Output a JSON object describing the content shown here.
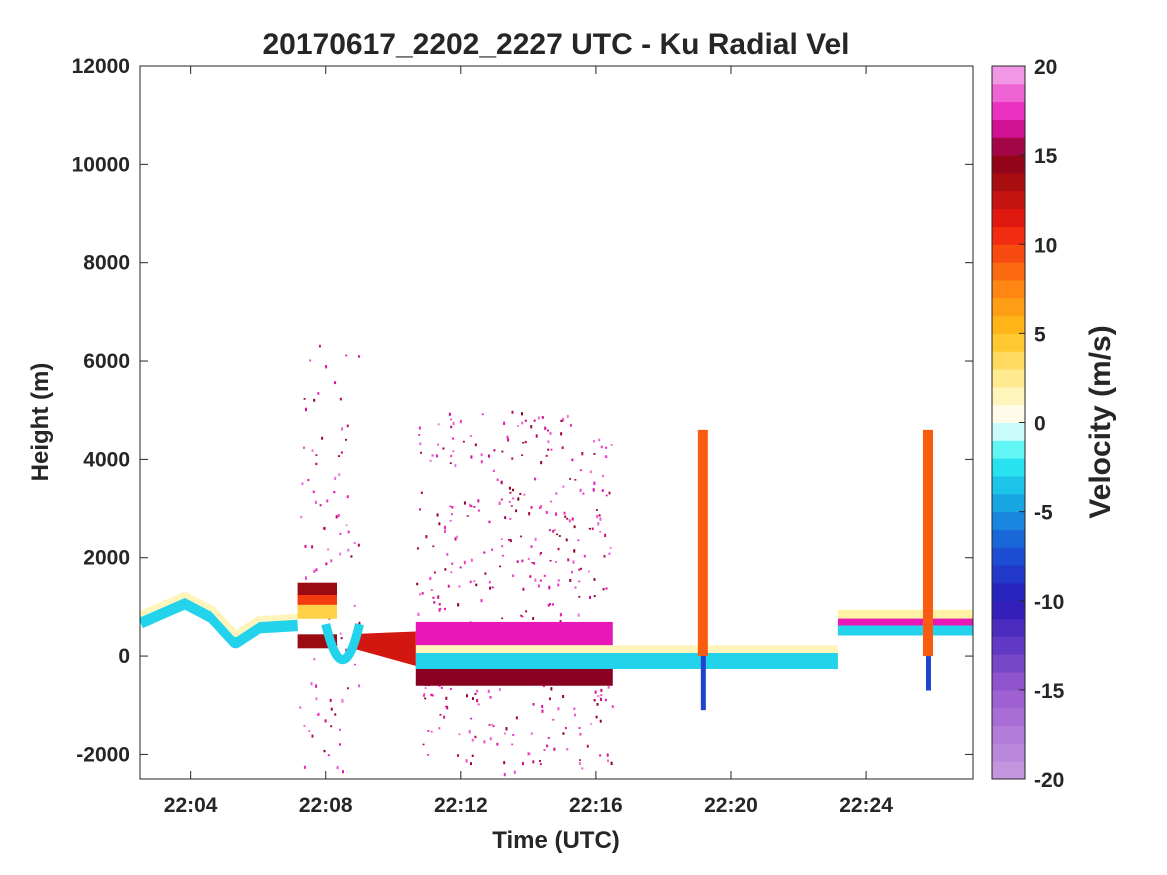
{
  "chart_data": {
    "type": "heatmap",
    "title": "20170617_2202_2227 UTC - Ku Radial Vel",
    "xlabel": "Time (UTC)",
    "ylabel": "Height (m)",
    "colorbar_label": "Velocity (m/s)",
    "xlim": [
      "22:02:30",
      "22:27:10"
    ],
    "ylim": [
      -2500,
      12000
    ],
    "clim": [
      -20,
      20
    ],
    "x_ticks": [
      "22:04",
      "22:08",
      "22:12",
      "22:16",
      "22:20",
      "22:24"
    ],
    "y_ticks": [
      12000,
      10000,
      8000,
      6000,
      4000,
      2000,
      0,
      -2000
    ],
    "y_tick_labels": [
      "12000",
      "10000",
      "8000",
      "6000",
      "4000",
      "2000",
      "0",
      "-2000"
    ],
    "colorbar_ticks": [
      20,
      15,
      10,
      5,
      0,
      -5,
      -10,
      -15,
      -20
    ],
    "colorbar_tick_labels": [
      "20",
      "15",
      "10",
      "5",
      "0",
      "-5",
      "-10",
      "-15",
      "-20"
    ],
    "grid": false,
    "colormap": [
      {
        "value": -20,
        "color": "#c89be0"
      },
      {
        "value": -15,
        "color": "#9a5ad0"
      },
      {
        "value": -10,
        "color": "#2a18b8"
      },
      {
        "value": -7,
        "color": "#1a58d8"
      },
      {
        "value": -4,
        "color": "#17b4e6"
      },
      {
        "value": -2,
        "color": "#2ef2f2"
      },
      {
        "value": 0,
        "color": "#ffffff"
      },
      {
        "value": 2,
        "color": "#fff2a6"
      },
      {
        "value": 5,
        "color": "#ffc01a"
      },
      {
        "value": 8,
        "color": "#ff7a10"
      },
      {
        "value": 11,
        "color": "#ee1c10"
      },
      {
        "value": 14,
        "color": "#9a0a10"
      },
      {
        "value": 15,
        "color": "#8a0020"
      },
      {
        "value": 17,
        "color": "#e818b8"
      },
      {
        "value": 20,
        "color": "#f4b0ee"
      }
    ],
    "features": [
      {
        "name": "surface-echo-approach",
        "t": [
          "22:02:30",
          "22:03:50",
          "22:04:40",
          "22:05:20",
          "22:06:00",
          "22:07:10"
        ],
        "height": [
          700,
          1100,
          800,
          300,
          600,
          650
        ],
        "velocity": -3
      },
      {
        "name": "surface-echo-approach-upper",
        "t": [
          "22:02:30",
          "22:03:50",
          "22:04:40",
          "22:05:20",
          "22:06:00",
          "22:07:10"
        ],
        "height": [
          850,
          1250,
          950,
          450,
          750,
          800
        ],
        "velocity": 1.5
      },
      {
        "name": "turn-bands",
        "t_start": "22:07:10",
        "t_end": "22:08:20",
        "bands": [
          {
            "height": 1350,
            "velocity": 14
          },
          {
            "height": 1100,
            "velocity": 10
          },
          {
            "height": 900,
            "velocity": 4
          },
          {
            "height": 300,
            "velocity": 14
          }
        ]
      },
      {
        "name": "dip-at-22-08",
        "t": "22:08:30",
        "min_height": -550,
        "velocity": -3
      },
      {
        "name": "sea-clutter-upper",
        "t_start": "22:10:40",
        "t_end": "22:16:30",
        "height": 450,
        "velocity": 17
      },
      {
        "name": "sea-clutter-lower",
        "t_start": "22:10:40",
        "t_end": "22:16:30",
        "height": -400,
        "velocity": 15
      },
      {
        "name": "surface-level-leg",
        "t_start": "22:10:40",
        "t_end": "22:23:10",
        "height": -100,
        "velocity": -3
      },
      {
        "name": "surface-level-leg-upper",
        "t_start": "22:10:40",
        "t_end": "22:23:10",
        "height": 80,
        "velocity": 1.5
      },
      {
        "name": "column-22-19",
        "t": "22:19:10",
        "height_range": [
          -1100,
          4600
        ],
        "velocity": 9
      },
      {
        "name": "final-leg",
        "t_start": "22:23:10",
        "t_end": "22:27:10",
        "height": 600,
        "velocity": -3
      },
      {
        "name": "column-22-26",
        "t": "22:25:50",
        "height_range": [
          -700,
          4600
        ],
        "velocity": 9
      },
      {
        "name": "speckle-region-1",
        "t_start": "22:07:10",
        "t_end": "22:09:00",
        "height_range": [
          -2400,
          6400
        ],
        "velocity": 17
      },
      {
        "name": "speckle-region-2",
        "t_start": "22:10:40",
        "t_end": "22:16:30",
        "height_range": [
          -2400,
          5000
        ],
        "velocity": 17
      }
    ]
  }
}
